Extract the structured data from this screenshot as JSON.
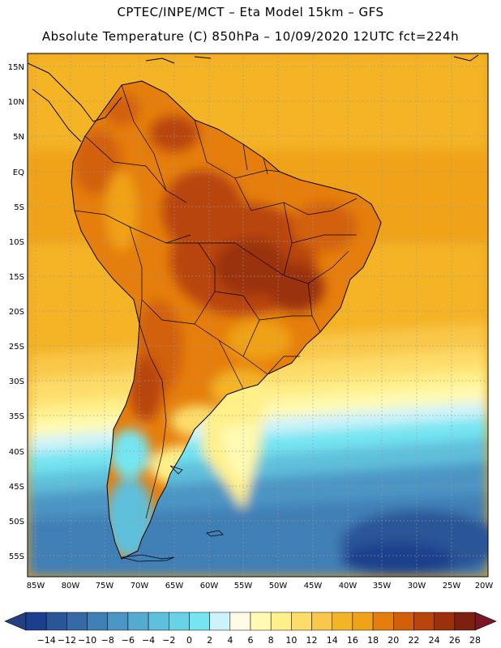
{
  "header": {
    "line1": "CPTEC/INPE/MCT –   Eta Model 15km – GFS",
    "line2": "Absolute Temperature (C) 850hPa – 10/09/2020 12UTC fct=224h"
  },
  "map": {
    "lat_ticks": [
      "15N",
      "10N",
      "5N",
      "EQ",
      "5S",
      "10S",
      "15S",
      "20S",
      "25S",
      "30S",
      "35S",
      "40S",
      "45S",
      "50S",
      "55S"
    ],
    "lon_ticks": [
      "85W",
      "80W",
      "75W",
      "70W",
      "65W",
      "60W",
      "55W",
      "50W",
      "45W",
      "40W",
      "35W",
      "30W",
      "25W",
      "20W"
    ]
  },
  "colorbar": {
    "labels": [
      "-14",
      "-12",
      "-10",
      "-8",
      "-6",
      "-4",
      "-2",
      "0",
      "2",
      "4",
      "6",
      "8",
      "10",
      "12",
      "14",
      "16",
      "18",
      "20",
      "22",
      "24",
      "26",
      "28"
    ],
    "colors": [
      "#1a3f8c",
      "#2a5597",
      "#356aa6",
      "#3f7fb6",
      "#4b95c4",
      "#55aad0",
      "#5ec0dc",
      "#67d2e8",
      "#74e5f1",
      "#cdf3fa",
      "#fffae6",
      "#fffab4",
      "#fff08a",
      "#fddd6a",
      "#f9c84a",
      "#f4b428",
      "#f0a218",
      "#e57e0c",
      "#d2600a",
      "#b8440c",
      "#9a300c",
      "#7d2010"
    ],
    "under_color": "#243f82",
    "over_color": "#7a1626"
  }
}
